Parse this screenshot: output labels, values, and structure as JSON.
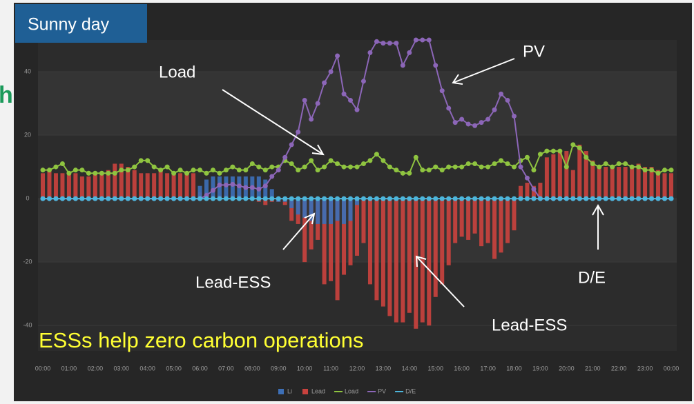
{
  "chart_data": {
    "type": "combo",
    "title": "Sunny day",
    "side_text": "h",
    "annotations": [
      "Load",
      "PV",
      "Lead-ESS",
      "D/E",
      "Lead-ESS",
      "ESSs help zero carbon operations"
    ],
    "categories": [
      "00:00",
      null,
      null,
      null,
      "01:00",
      null,
      null,
      null,
      "02:00",
      null,
      null,
      null,
      "03:00",
      null,
      null,
      null,
      "04:00",
      null,
      null,
      null,
      "05:00",
      null,
      null,
      null,
      "06:00",
      null,
      null,
      null,
      "07:00",
      null,
      null,
      null,
      "08:00",
      null,
      null,
      null,
      "09:00",
      null,
      null,
      null,
      "10:00",
      null,
      null,
      null,
      "11:00",
      null,
      null,
      null,
      "12:00",
      null,
      null,
      null,
      "13:00",
      null,
      null,
      null,
      "14:00",
      null,
      null,
      null,
      "15:00",
      null,
      null,
      null,
      "16:00",
      null,
      null,
      null,
      "17:00",
      null,
      null,
      null,
      "18:00",
      null,
      null,
      null,
      "19:00",
      null,
      null,
      null,
      "20:00",
      null,
      null,
      null,
      "21:00",
      null,
      null,
      null,
      "22:00",
      null,
      null,
      null,
      "23:00",
      null,
      null,
      null,
      "00:00"
    ],
    "ylim": [
      -48,
      50
    ],
    "yticks": [
      -40,
      -20,
      0,
      20,
      40
    ],
    "grid": true,
    "legend": "bottom",
    "series": [
      {
        "name": "Li",
        "kind": "bar",
        "color": "#3d6fb6",
        "values": [
          0,
          0,
          0,
          0,
          0,
          0,
          0,
          0,
          0,
          0,
          0,
          0,
          0,
          0,
          0,
          0,
          0,
          0,
          0,
          0,
          0,
          0,
          0,
          0,
          4,
          6,
          7,
          7,
          7,
          7,
          7,
          7,
          7,
          7,
          6,
          3,
          -1,
          -1,
          -3,
          -5,
          -6,
          -7,
          -8,
          -8,
          -8,
          -7,
          -8,
          -7,
          -2,
          0,
          0,
          0,
          0,
          0,
          0,
          0,
          0,
          0,
          0,
          0,
          0,
          0,
          0,
          0,
          0,
          0,
          0,
          0,
          0,
          0,
          0,
          0,
          0,
          0,
          0,
          0,
          0,
          0,
          0,
          0,
          0,
          0,
          0,
          0,
          0,
          0,
          0,
          0,
          0,
          0,
          0,
          0,
          0,
          0,
          0,
          0,
          0
        ]
      },
      {
        "name": "Lead",
        "kind": "bar",
        "color": "#c8423e",
        "values": [
          8,
          9,
          8,
          8,
          8,
          8,
          7,
          7,
          8,
          8,
          9,
          11,
          11,
          10,
          9,
          8,
          8,
          8,
          9,
          8,
          8,
          8,
          8,
          8,
          2,
          2,
          1,
          1,
          1,
          1,
          1,
          0,
          0,
          -1,
          -2,
          -1,
          -1,
          -2,
          -7,
          -8,
          -20,
          -16,
          -13,
          -27,
          -26,
          -32,
          -24,
          -21,
          -18,
          -14,
          -27,
          -32,
          -34,
          -37,
          -39,
          -39,
          -36,
          -41,
          -39,
          -40,
          -31,
          -27,
          -21,
          -14,
          -12,
          -13,
          -11,
          -15,
          -14,
          -19,
          -17,
          -14,
          -10,
          4,
          5,
          4,
          5,
          13,
          14,
          15,
          15,
          9,
          17,
          15,
          12,
          10,
          10,
          10,
          10,
          10,
          10,
          11,
          10,
          10,
          9,
          8,
          8
        ]
      },
      {
        "name": "Load",
        "kind": "line",
        "color": "#8fc440",
        "values": [
          9,
          9,
          10,
          11,
          8,
          9,
          9,
          8,
          8,
          8,
          8,
          8,
          9,
          9,
          10,
          12,
          12,
          10,
          9,
          10,
          8,
          9,
          8,
          9,
          9,
          8,
          9,
          8,
          9,
          10,
          9,
          9,
          11,
          10,
          9,
          10,
          10,
          12,
          11,
          9,
          10,
          12,
          9,
          10,
          12,
          11,
          10,
          10,
          10,
          11,
          12,
          14,
          12,
          10,
          9,
          8,
          8,
          13,
          9,
          9,
          10,
          9,
          10,
          10,
          10,
          11,
          11,
          10,
          10,
          11,
          12,
          11,
          10,
          12,
          13,
          9,
          14,
          15,
          15,
          15,
          10,
          17,
          16,
          13,
          11,
          10,
          11,
          10,
          11,
          11,
          10,
          10,
          9,
          9,
          8,
          9,
          9
        ]
      },
      {
        "name": "PV",
        "kind": "line",
        "color": "#8c66b8",
        "values": [
          0,
          0,
          0,
          0,
          0,
          0,
          0,
          0,
          0,
          0,
          0,
          0,
          0,
          0,
          0,
          0,
          0,
          0,
          0,
          0,
          0,
          0,
          0,
          0,
          0,
          1,
          2.6,
          4.3,
          4.3,
          4.5,
          4,
          3.5,
          3.5,
          3,
          4,
          7,
          9,
          13,
          17,
          21,
          31,
          25,
          30,
          36.5,
          40,
          45,
          33,
          31,
          28,
          37,
          46,
          49.5,
          49,
          49,
          49,
          42,
          46,
          50,
          50,
          50,
          42,
          34,
          28.5,
          24,
          25,
          23.5,
          23,
          24,
          25,
          28,
          33,
          31,
          26,
          10,
          6.5,
          3,
          0,
          0,
          0,
          0,
          0,
          0,
          0,
          0,
          0,
          0,
          0,
          0,
          0,
          0,
          0,
          0,
          0,
          0,
          0,
          0,
          0
        ]
      },
      {
        "name": "D/E",
        "kind": "line",
        "color": "#4db6dc",
        "values": [
          0,
          0,
          0,
          0,
          0,
          0,
          0,
          0,
          0,
          0,
          0,
          0,
          0,
          0,
          0,
          0,
          0,
          0,
          0,
          0,
          0,
          0,
          0,
          0,
          0,
          0,
          0,
          0,
          0,
          0,
          0,
          0,
          0,
          0,
          0,
          0,
          0,
          0,
          0,
          0,
          0,
          0,
          0,
          0,
          0,
          0,
          0,
          0,
          0,
          0,
          0,
          0,
          0,
          0,
          0,
          0,
          0,
          0,
          0,
          0,
          0,
          0,
          0,
          0,
          0,
          0,
          0,
          0,
          0,
          0,
          0,
          0,
          0,
          0,
          0,
          0,
          0,
          0,
          0,
          0,
          0,
          0,
          0,
          0,
          0,
          0,
          0,
          0,
          0,
          0,
          0,
          0,
          0,
          0,
          0,
          0,
          0
        ]
      }
    ]
  }
}
